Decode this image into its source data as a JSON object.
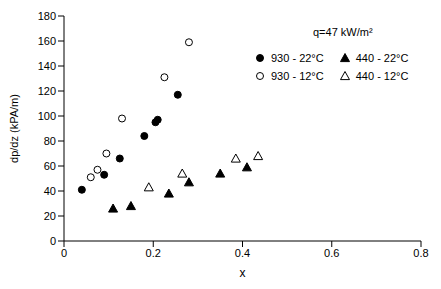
{
  "chart_data": {
    "type": "scatter",
    "title": null,
    "annotation": "q=47 kW/m²",
    "x_label": "x",
    "y_label": "dp/dz (kPA/m)",
    "xlim": [
      0,
      0.8
    ],
    "xticks": [
      0,
      0.2,
      0.4,
      0.6,
      0.8
    ],
    "ylim": [
      0,
      180
    ],
    "yticks": [
      0,
      20,
      40,
      60,
      80,
      100,
      120,
      140,
      160,
      180
    ],
    "grid": false,
    "legend": "upper right",
    "series": [
      {
        "name": "930 - 22°C",
        "color": "#000000",
        "marker": "circle",
        "x": [
          0.04,
          0.09,
          0.125,
          0.18,
          0.205,
          0.21,
          0.255
        ],
        "values": [
          41,
          53,
          66,
          84,
          95,
          97,
          117
        ]
      },
      {
        "name": "440 - 22°C",
        "color": "#000000",
        "marker": "triangle",
        "x": [
          0.11,
          0.15,
          0.235,
          0.28,
          0.35,
          0.41
        ],
        "values": [
          26,
          28,
          38,
          47,
          54,
          59
        ]
      },
      {
        "name": "930 - 12°C",
        "color": "#000000",
        "marker": "open_circle",
        "x": [
          0.06,
          0.075,
          0.095,
          0.13,
          0.225,
          0.28
        ],
        "values": [
          51,
          57,
          70,
          98,
          131,
          159
        ]
      },
      {
        "name": "440 - 12°C",
        "color": "#000000",
        "marker": "open_triangle",
        "x": [
          0.19,
          0.265,
          0.385,
          0.435
        ],
        "values": [
          43,
          54,
          66,
          68
        ]
      }
    ]
  }
}
